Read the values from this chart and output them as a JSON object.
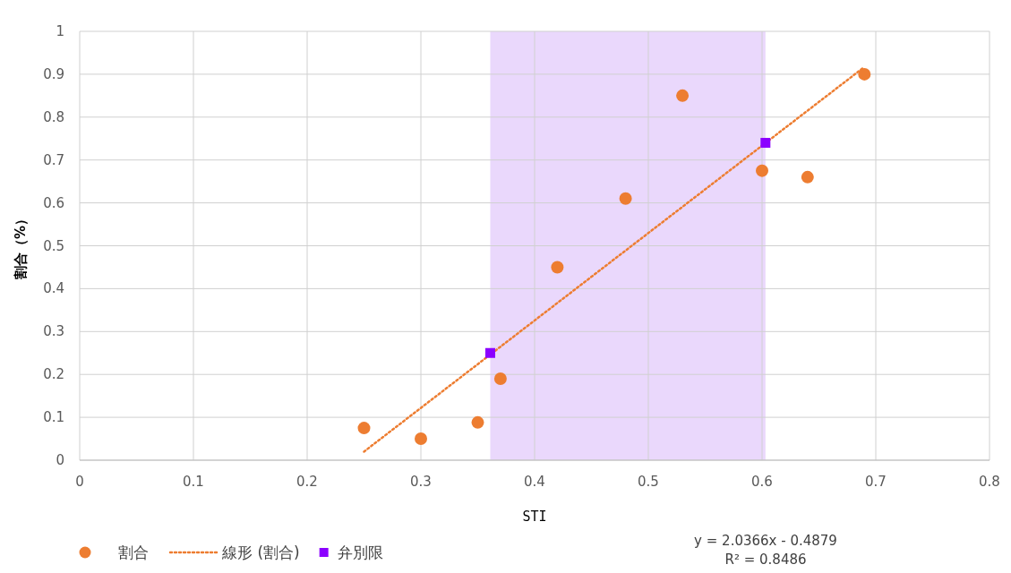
{
  "chart_data": {
    "type": "scatter",
    "xlabel": "STI",
    "ylabel": "割合（%）",
    "xlim": [
      0,
      0.8
    ],
    "xticks": [
      0,
      0.1,
      0.2,
      0.3,
      0.4,
      0.5,
      0.6,
      0.7,
      0.8
    ],
    "ylim": [
      0,
      1
    ],
    "yticks": [
      0,
      0.1,
      0.2,
      0.3,
      0.4,
      0.5,
      0.6,
      0.7,
      0.8,
      0.9,
      1
    ],
    "grid": true,
    "legend": "bottom left",
    "bands": [
      {
        "axis": "x",
        "from": 0.361,
        "to": 0.603,
        "color": "#ead8fc"
      }
    ],
    "annotations": [
      "y = 2.0366x - 0.4879",
      "R² = 0.8486"
    ],
    "series": [
      {
        "name": "割合",
        "marker": "circle",
        "color": "#ed7d31",
        "x": [
          0.25,
          0.3,
          0.35,
          0.37,
          0.42,
          0.48,
          0.53,
          0.6,
          0.64,
          0.69
        ],
        "values": [
          0.075,
          0.05,
          0.088,
          0.19,
          0.45,
          0.61,
          0.85,
          0.675,
          0.66,
          0.9
        ]
      },
      {
        "name": "線形 (割合)",
        "type": "line",
        "line_style": "dotted",
        "color": "#ed7d31",
        "x": [
          0.25,
          0.69
        ],
        "values": [
          0.02,
          0.917
        ]
      },
      {
        "name": "弁別限",
        "marker": "square",
        "color": "#8b00ff",
        "x": [
          0.361,
          0.603
        ],
        "values": [
          0.25,
          0.74
        ]
      }
    ]
  }
}
